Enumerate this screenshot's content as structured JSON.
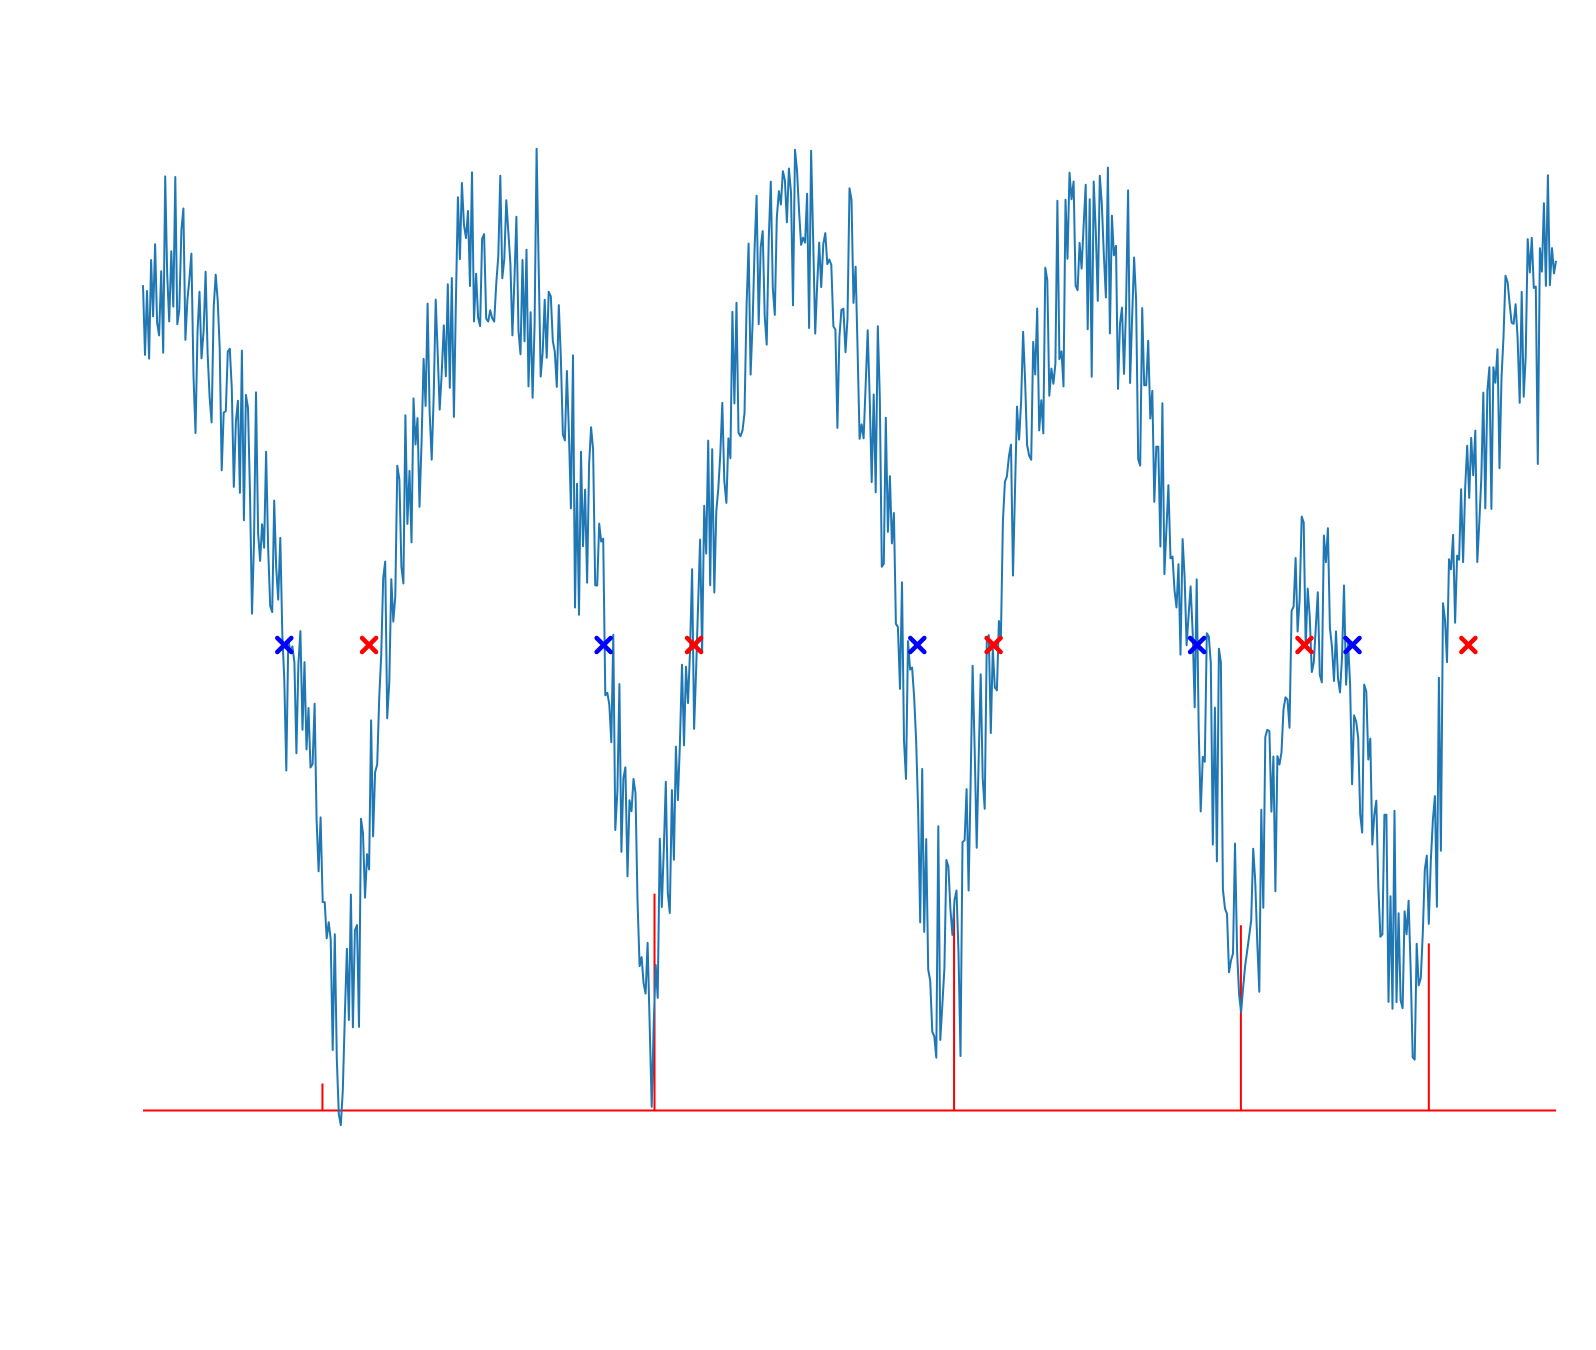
{
  "chart_data": {
    "type": "line",
    "title": "",
    "xlabel": "",
    "ylabel": "",
    "axes_visible": false,
    "grid": false,
    "legend": "none",
    "xlim": [
      0,
      100
    ],
    "ylim": [
      -1.25,
      1.25
    ],
    "series": [
      {
        "kind": "signal",
        "color": "#1f77b4",
        "style": "noisy line",
        "x": [
          0,
          2,
          4,
          6,
          8,
          10,
          12,
          14,
          16,
          18,
          20,
          22,
          24,
          26,
          28,
          30,
          32,
          34,
          36,
          38,
          40,
          42,
          44,
          46,
          48,
          50,
          52,
          54,
          56,
          58,
          60,
          62,
          64,
          66,
          68,
          70,
          72,
          74,
          76,
          78,
          80,
          82,
          84,
          86,
          88,
          90,
          92,
          94,
          96,
          98,
          100
        ],
        "y": [
          0.8,
          0.85,
          0.72,
          0.55,
          0.42,
          0.1,
          -0.32,
          -0.95,
          -0.3,
          0.22,
          0.55,
          0.78,
          0.9,
          0.86,
          0.72,
          0.55,
          0.25,
          -0.38,
          -0.7,
          -0.25,
          0.25,
          0.6,
          0.86,
          0.92,
          0.88,
          0.72,
          0.45,
          -0.1,
          -0.72,
          -0.55,
          -0.05,
          0.4,
          0.72,
          0.9,
          0.92,
          0.62,
          0.4,
          0.1,
          -0.3,
          -0.8,
          -0.25,
          0.15,
          0.05,
          -0.2,
          -0.58,
          -0.72,
          -0.1,
          0.35,
          0.55,
          0.78,
          0.85
        ]
      }
    ],
    "cross_markers": [
      {
        "color": "#0000ff",
        "x": 10.0,
        "y": 0
      },
      {
        "color": "#ff0000",
        "x": 16.0,
        "y": 0
      },
      {
        "color": "#0000ff",
        "x": 32.6,
        "y": 0
      },
      {
        "color": "#ff0000",
        "x": 39.0,
        "y": 0
      },
      {
        "color": "#0000ff",
        "x": 54.8,
        "y": 0
      },
      {
        "color": "#ff0000",
        "x": 60.2,
        "y": 0
      },
      {
        "color": "#0000ff",
        "x": 74.6,
        "y": 0
      },
      {
        "color": "#ff0000",
        "x": 82.2,
        "y": 0
      },
      {
        "color": "#0000ff",
        "x": 85.6,
        "y": 0
      },
      {
        "color": "#ff0000",
        "x": 93.8,
        "y": 0
      }
    ],
    "peak_detector": {
      "color": "#ff0000",
      "baseline": -1.03,
      "pulses": [
        {
          "x": 12.7,
          "top": -0.97
        },
        {
          "x": 36.2,
          "top": -0.55
        },
        {
          "x": 57.4,
          "top": -0.58
        },
        {
          "x": 77.7,
          "top": -0.62
        },
        {
          "x": 91.0,
          "top": -0.66
        }
      ],
      "drop_after_last": true
    }
  }
}
